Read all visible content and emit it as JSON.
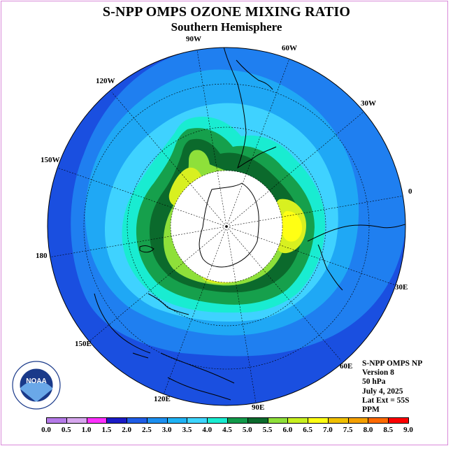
{
  "title": "S-NPP OMPS OZONE MIXING RATIO",
  "subtitle": "Southern Hemisphere",
  "longitude_labels": [
    "90W",
    "60W",
    "30W",
    "0",
    "30E",
    "60E",
    "90E",
    "120E",
    "150E",
    "180",
    "150W",
    "120W"
  ],
  "info": {
    "line1": "S-NPP OMPS NP",
    "line2": "Version 8",
    "line3": "50 hPa",
    "line4": "July 4, 2025",
    "line5": "Lat Ext = 55S",
    "line6": "PPM"
  },
  "logo": {
    "text": "NOAA",
    "ring_text": "NATIONAL OCEANIC AND ATMOSPHERIC ADMINISTRATION · U.S. DEPARTMENT OF COMMERCE"
  },
  "colorbar": {
    "ticks": [
      "0.0",
      "0.5",
      "1.0",
      "1.5",
      "2.0",
      "2.5",
      "3.0",
      "3.5",
      "4.0",
      "4.5",
      "5.0",
      "5.5",
      "6.0",
      "6.5",
      "7.0",
      "7.5",
      "8.0",
      "8.5",
      "9.0"
    ],
    "colors": [
      "#b57ae8",
      "#d7a7ee",
      "#ff30ff",
      "#1b1bc6",
      "#1f5de6",
      "#1c8ff0",
      "#1fb3f5",
      "#3ed6ff",
      "#19ecd1",
      "#119a4a",
      "#0b6a2c",
      "#8ee03a",
      "#c8f020",
      "#ffff14",
      "#f0c000",
      "#f5a000",
      "#ff6a00",
      "#ff0000",
      "#8a5a3a"
    ]
  },
  "colors": {
    "band_outer": "#1a4fe0",
    "band_2": "#1f7ff0",
    "band_3": "#1fa8f5",
    "band_4": "#3fd2ff",
    "band_5": "#19ecd1",
    "band_6": "#16a04c",
    "band_7": "#0b6a2c",
    "band_8": "#8ee03a",
    "band_9": "#d8f020",
    "band_10": "#ffff14",
    "pole_cap": "#ffffff"
  }
}
